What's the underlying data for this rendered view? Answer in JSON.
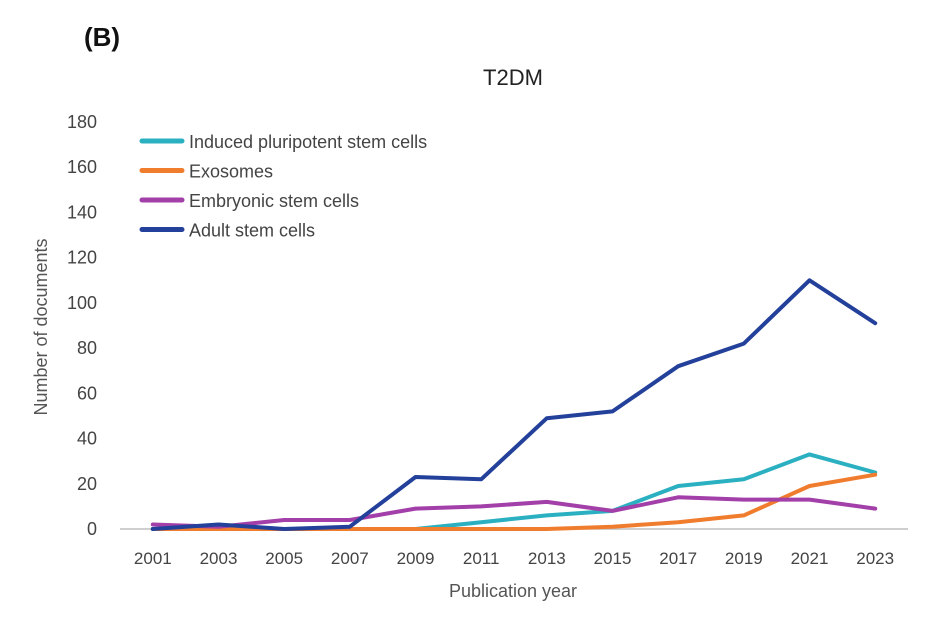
{
  "panel_label": "(B)",
  "chart_data": {
    "type": "line",
    "title": "T2DM",
    "xlabel": "Publication year",
    "ylabel": "Number of documents",
    "ylim": [
      0,
      180
    ],
    "yticks": [
      0,
      20,
      40,
      60,
      80,
      100,
      120,
      140,
      160,
      180
    ],
    "x": [
      2001,
      2003,
      2005,
      2007,
      2009,
      2011,
      2013,
      2015,
      2017,
      2019,
      2021,
      2023
    ],
    "xtick_labels": [
      "2001",
      "2003",
      "2005",
      "2007",
      "2009",
      "2011",
      "2013",
      "2015",
      "2017",
      "2019",
      "2021",
      "2023"
    ],
    "grid": false,
    "legend_position": "top-left",
    "series": [
      {
        "name": "Induced pluripotent stem cells",
        "color": "#2ab0c0",
        "values": [
          0,
          0,
          0,
          0,
          0,
          3,
          6,
          8,
          19,
          22,
          33,
          25
        ]
      },
      {
        "name": "Exosomes",
        "color": "#f07c2e",
        "values": [
          0,
          0,
          0,
          0,
          0,
          0,
          0,
          1,
          3,
          6,
          19,
          24
        ]
      },
      {
        "name": "Embryonic stem cells",
        "color": "#a33fa8",
        "values": [
          2,
          1,
          4,
          4,
          9,
          10,
          12,
          8,
          14,
          13,
          13,
          9
        ]
      },
      {
        "name": "Adult stem cells",
        "color": "#23409a",
        "values": [
          0,
          2,
          0,
          1,
          23,
          22,
          49,
          52,
          72,
          82,
          110,
          91
        ]
      }
    ]
  }
}
